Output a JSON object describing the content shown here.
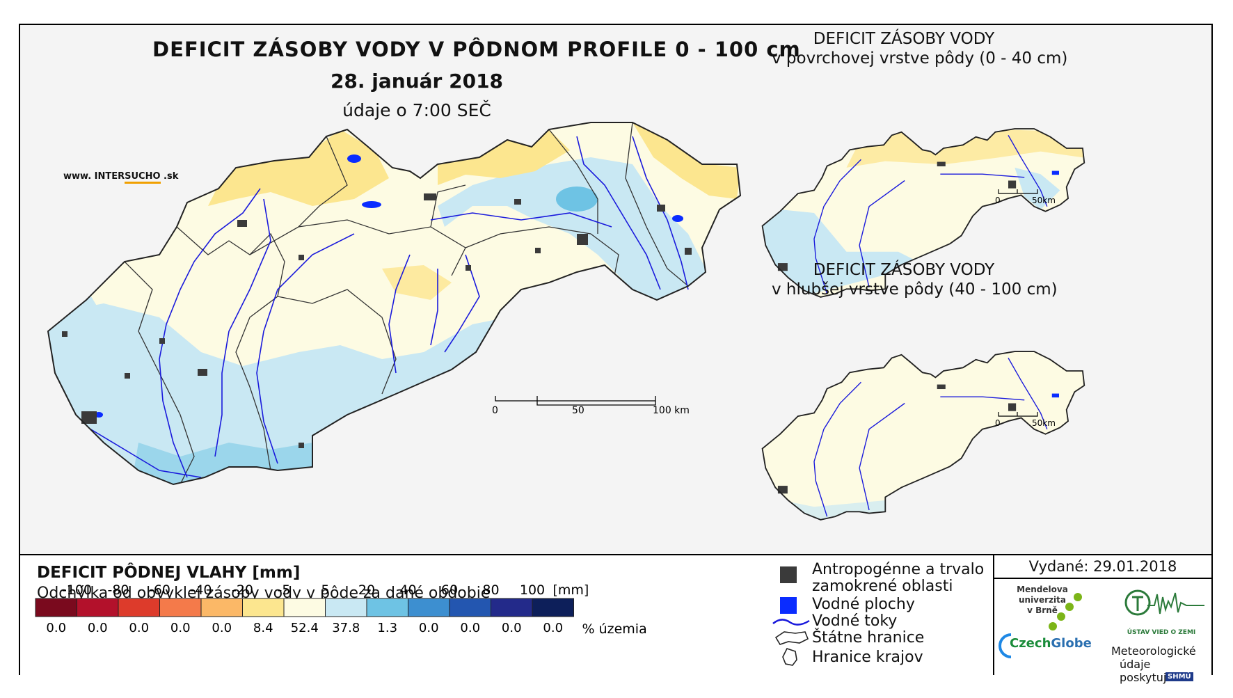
{
  "title": {
    "main": "DEFICIT ZÁSOBY VODY V PÔDNOM PROFILE 0 - 100 cm",
    "date": "28. január 2018",
    "time": "údaje o 7:00 SEČ"
  },
  "branding": {
    "site_prefix": "www. INTER",
    "site_bold": "SUCHO",
    "site_suffix": " .sk"
  },
  "insets": [
    {
      "title_line1": "DEFICIT ZÁSOBY VODY",
      "title_line2": "v povrchovej vrstve pôdy (0 - 40 cm)",
      "scale_labels": [
        "0",
        "50km"
      ]
    },
    {
      "title_line1": "DEFICIT ZÁSOBY VODY",
      "title_line2": "v hlubšej vrstve pôdy (40 - 100 cm)",
      "scale_labels": [
        "0",
        "50km"
      ]
    }
  ],
  "main_scale": {
    "labels": [
      "0",
      "50",
      "100 km"
    ]
  },
  "legend": {
    "title": "DEFICIT PÔDNEJ VLAHY [mm]",
    "subtitle": "Odchýlka od obvyklej zásoby vody v pôde za dané obdobie",
    "unit": "[mm]",
    "pct_label": "% územia",
    "breaks": [
      "-100",
      "-80",
      "-60",
      "-40",
      "-20",
      "-5",
      "5",
      "20",
      "40",
      "60",
      "80",
      "100"
    ],
    "classes": [
      {
        "color": "#7a0a1e",
        "pct": "0.0"
      },
      {
        "color": "#b3112b",
        "pct": "0.0"
      },
      {
        "color": "#dd3b2b",
        "pct": "0.0"
      },
      {
        "color": "#f47a4a",
        "pct": "0.0"
      },
      {
        "color": "#fbb867",
        "pct": "0.0"
      },
      {
        "color": "#fce68f",
        "pct": "8.4"
      },
      {
        "color": "#fdfbe3",
        "pct": "52.4"
      },
      {
        "color": "#c9e8f3",
        "pct": "37.8"
      },
      {
        "color": "#6ec3e4",
        "pct": "1.3"
      },
      {
        "color": "#3d8fd0",
        "pct": "0.0"
      },
      {
        "color": "#2356b0",
        "pct": "0.0"
      },
      {
        "color": "#232a8a",
        "pct": "0.0"
      },
      {
        "color": "#0d1f5a",
        "pct": "0.0"
      }
    ]
  },
  "symbols": [
    {
      "icon": "gray-square-icon",
      "line1": "Antropogénne a trvalo",
      "line2": "zamokrené oblasti"
    },
    {
      "icon": "blue-square-icon",
      "line1": "Vodné plochy",
      "line2": ""
    },
    {
      "icon": "river-line-icon",
      "line1": "Vodné toky",
      "line2": ""
    },
    {
      "icon": "state-border-icon",
      "line1": "Štátne hranice",
      "line2": ""
    },
    {
      "icon": "region-border-icon",
      "line1": "Hranice krajov",
      "line2": ""
    }
  ],
  "issued": "Vydané: 29.01.2018",
  "logos": {
    "mendel": [
      "Mendelova",
      "univerzita",
      "v Brně"
    ],
    "czech_a": "Czech",
    "czech_b": "Globe",
    "uvz": "ÚSTAV VIED O ZEMI",
    "meteo": [
      "Meteorologické",
      "údaje",
      "poskytuje:"
    ],
    "shmu": "SHMÚ"
  },
  "colors": {
    "river": "#1a1adc",
    "water": "#0a2cff",
    "urban": "#3a3a3a",
    "border": "#000000"
  }
}
